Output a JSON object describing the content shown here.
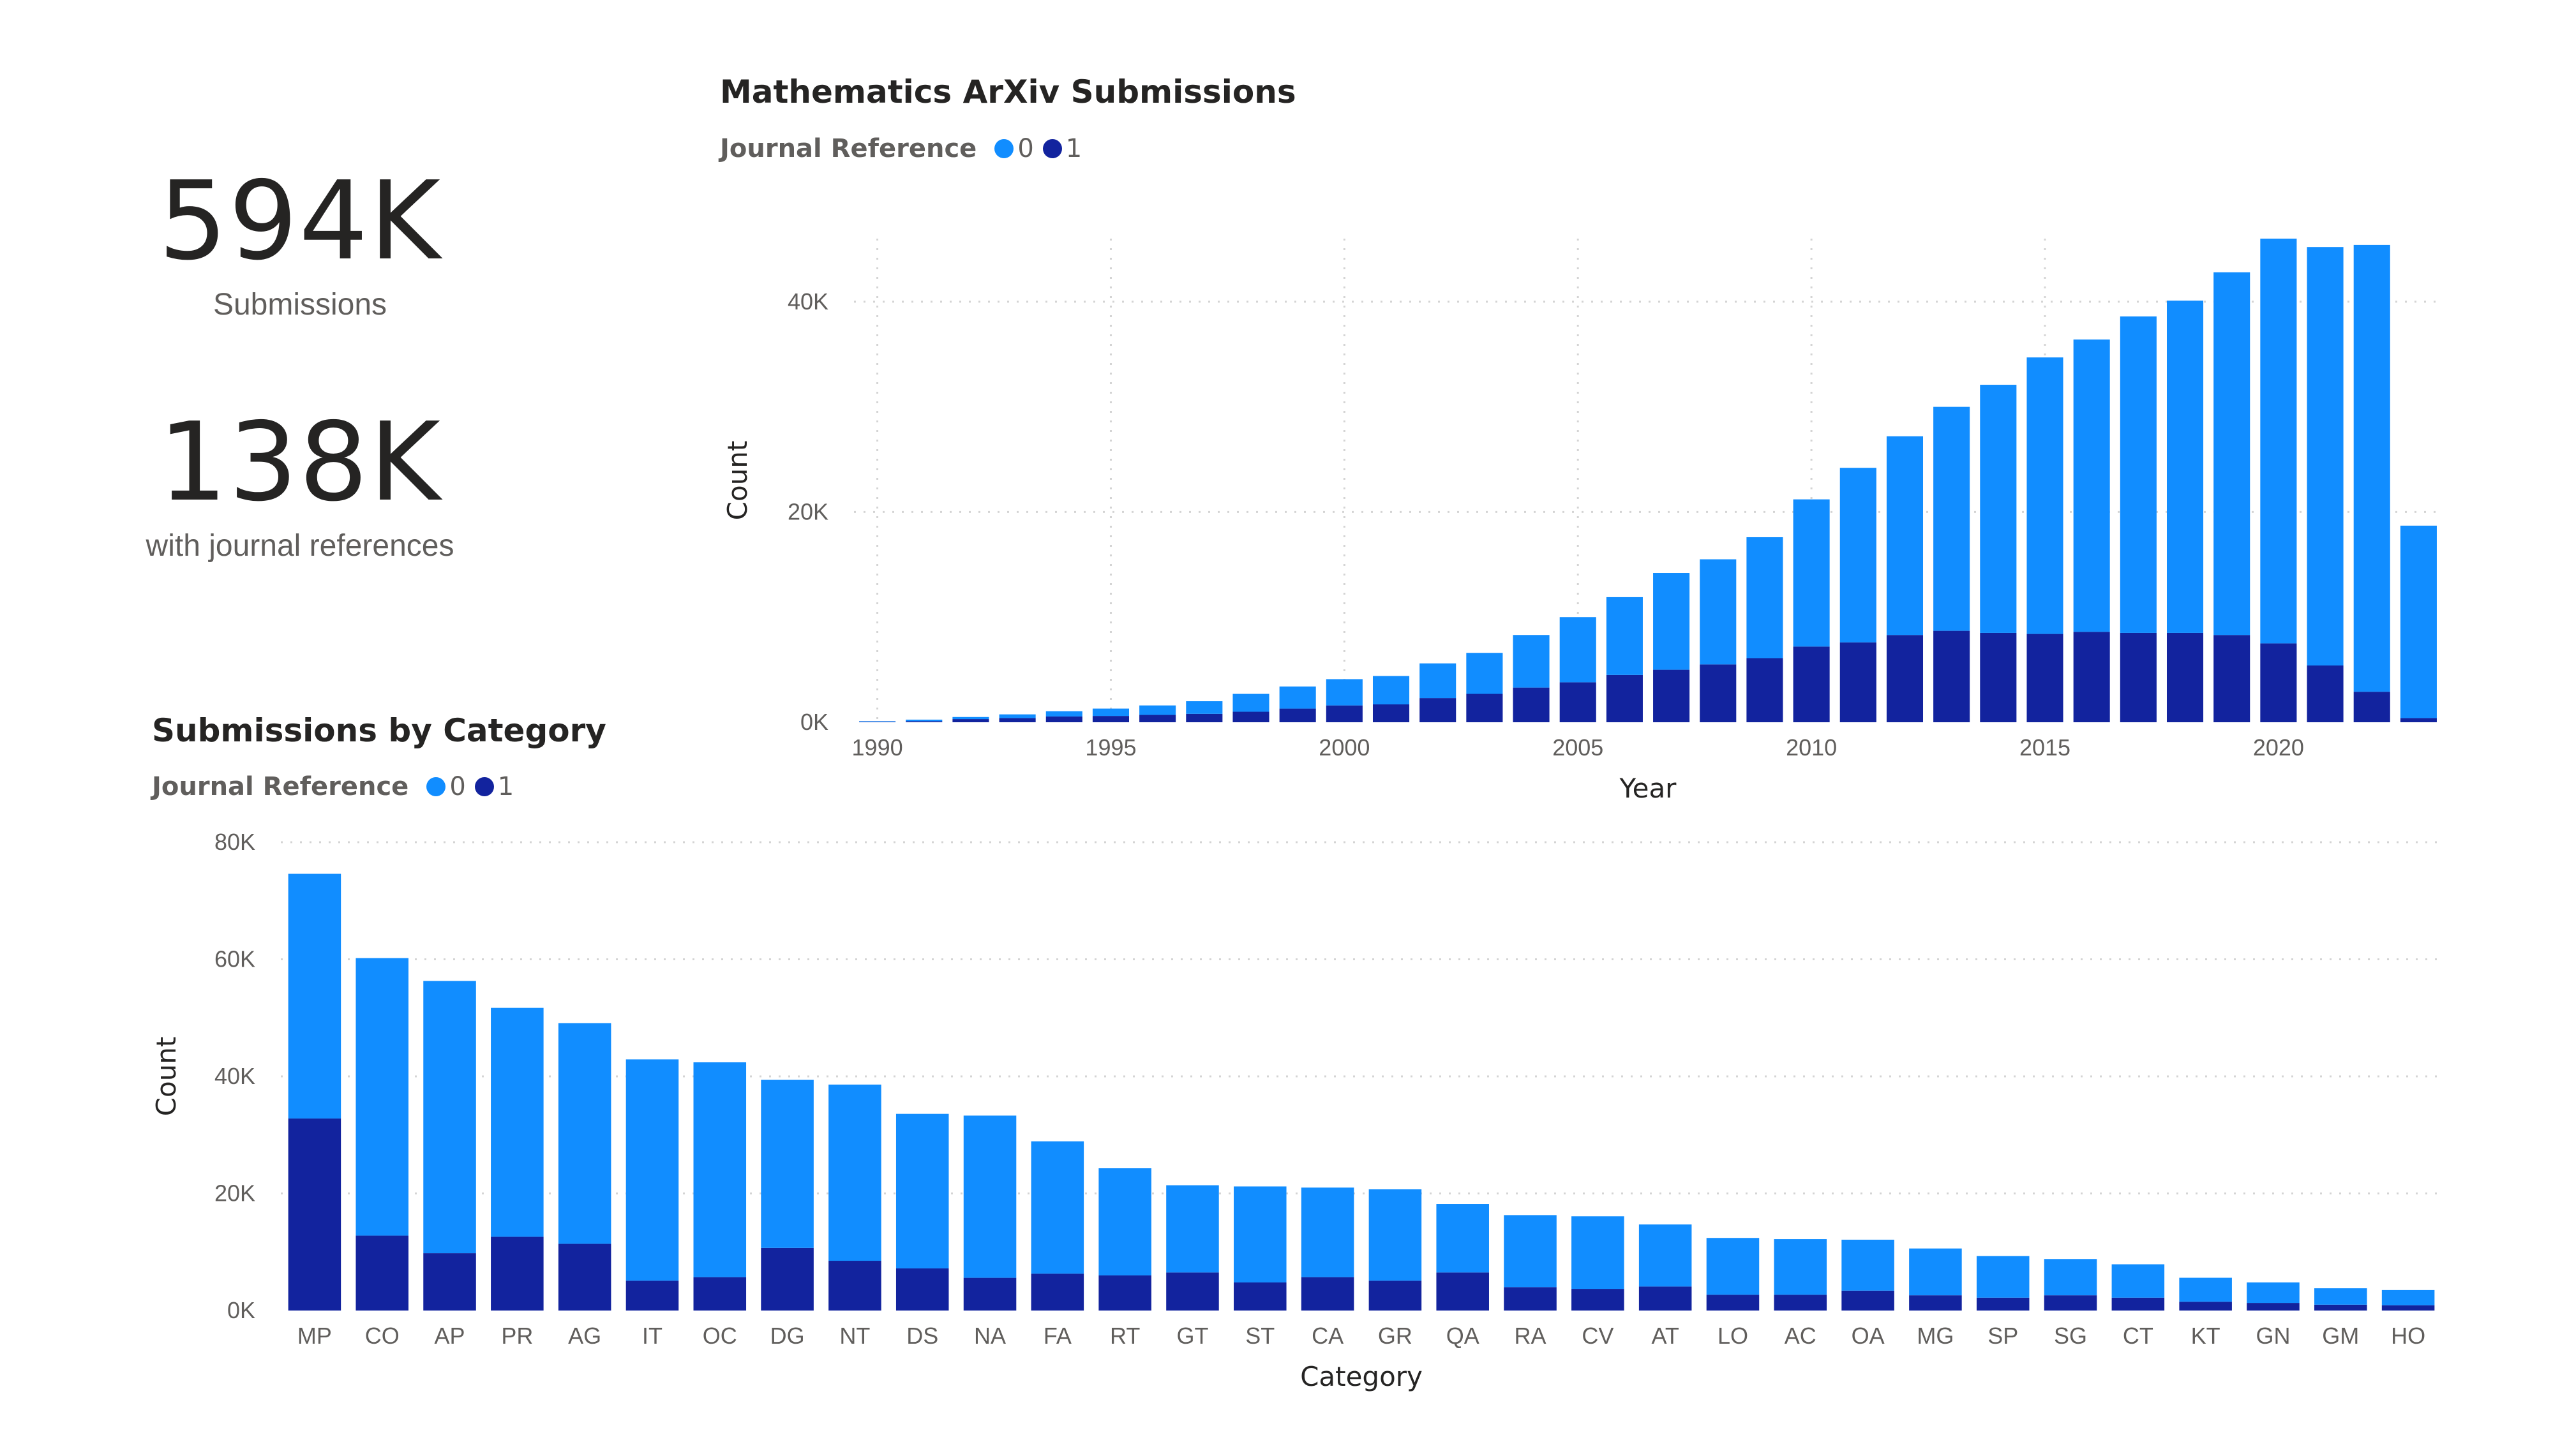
{
  "kpis": [
    {
      "value": "594K",
      "label": "Submissions"
    },
    {
      "value": "138K",
      "label": "with journal references"
    }
  ],
  "colors": {
    "series0": "#118DFF",
    "series1": "#12239E",
    "grid": "#d4d4d4"
  },
  "chart_data": [
    {
      "type": "bar",
      "stacked": true,
      "title": "Mathematics ArXiv Submissions",
      "legend_title": "Journal Reference",
      "legend_position": "top-left",
      "xlabel": "Year",
      "ylabel": "Count",
      "ylim": [
        0,
        46000
      ],
      "y_ticks": [
        "0K",
        "20K",
        "40K"
      ],
      "x_ticks": [
        "1990",
        "1995",
        "2000",
        "2005",
        "2010",
        "2015",
        "2020"
      ],
      "grid": true,
      "categories": [
        1990,
        1991,
        1992,
        1993,
        1994,
        1995,
        1996,
        1997,
        1998,
        1999,
        2000,
        2001,
        2002,
        2003,
        2004,
        2005,
        2006,
        2007,
        2008,
        2009,
        2010,
        2011,
        2012,
        2013,
        2014,
        2015,
        2016,
        2017,
        2018,
        2019,
        2020,
        2021,
        2022,
        2023
      ],
      "series": [
        {
          "name": "0",
          "values": [
            50,
            150,
            200,
            350,
            500,
            700,
            900,
            1200,
            1700,
            2100,
            2500,
            2700,
            3300,
            3900,
            5000,
            6200,
            7400,
            9200,
            10000,
            11500,
            14000,
            16600,
            18900,
            21300,
            23600,
            26300,
            27800,
            30100,
            31600,
            34500,
            38500,
            39800,
            42500,
            18300
          ]
        },
        {
          "name": "1",
          "values": [
            50,
            100,
            300,
            400,
            550,
            600,
            700,
            800,
            1000,
            1300,
            1600,
            1700,
            2300,
            2700,
            3300,
            3800,
            4500,
            5000,
            5500,
            6100,
            7200,
            7600,
            8300,
            8700,
            8500,
            8400,
            8600,
            8500,
            8500,
            8300,
            7500,
            5400,
            2900,
            400
          ]
        }
      ]
    },
    {
      "type": "bar",
      "stacked": true,
      "title": "Submissions by Category",
      "legend_title": "Journal Reference",
      "legend_position": "top-left",
      "xlabel": "Category",
      "ylabel": "Count",
      "ylim": [
        0,
        80000
      ],
      "y_ticks": [
        "0K",
        "20K",
        "40K",
        "60K",
        "80K"
      ],
      "grid": true,
      "categories": [
        "MP",
        "CO",
        "AP",
        "PR",
        "AG",
        "IT",
        "OC",
        "DG",
        "NT",
        "DS",
        "NA",
        "FA",
        "RT",
        "GT",
        "ST",
        "CA",
        "GR",
        "QA",
        "RA",
        "CV",
        "AT",
        "LO",
        "AC",
        "OA",
        "MG",
        "SP",
        "SG",
        "CT",
        "KT",
        "GN",
        "GM",
        "HO"
      ],
      "series": [
        {
          "name": "0",
          "values": [
            41800,
            47400,
            46500,
            39100,
            37700,
            37800,
            36700,
            28700,
            30100,
            26400,
            27700,
            22600,
            18300,
            14900,
            16400,
            15300,
            15600,
            11700,
            12300,
            12400,
            10600,
            9700,
            9500,
            8700,
            8000,
            7100,
            6200,
            5700,
            4100,
            3500,
            2800,
            2600
          ]
        },
        {
          "name": "1",
          "values": [
            32800,
            12800,
            9800,
            12600,
            11400,
            5100,
            5700,
            10700,
            8500,
            7200,
            5600,
            6300,
            6000,
            6500,
            4800,
            5700,
            5100,
            6500,
            4000,
            3700,
            4100,
            2700,
            2700,
            3400,
            2600,
            2200,
            2600,
            2200,
            1500,
            1300,
            1000,
            900
          ]
        }
      ]
    }
  ]
}
